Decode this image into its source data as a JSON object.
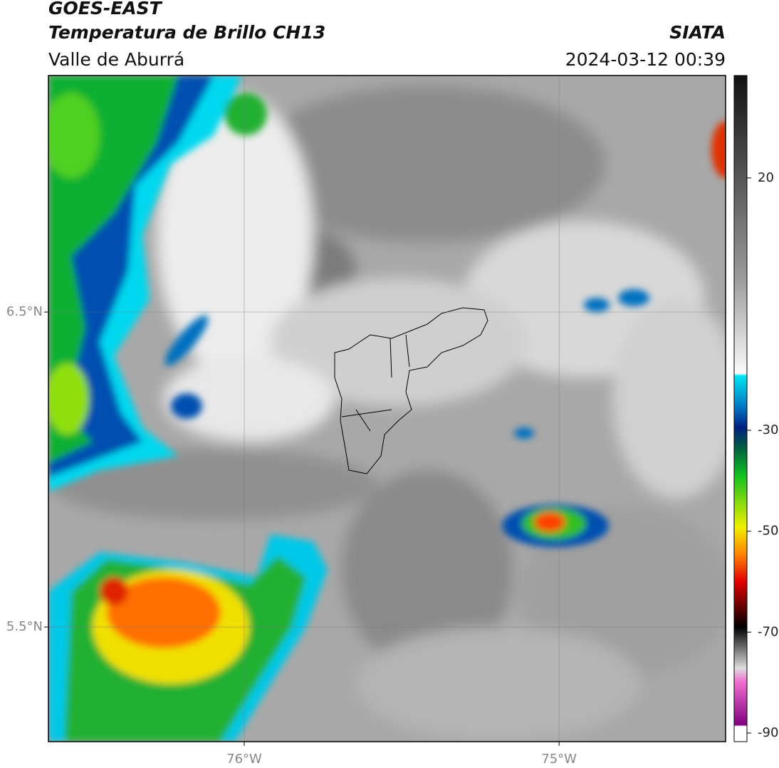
{
  "header": {
    "satellite": "GOES-EAST",
    "product": "Temperatura de Brillo CH13",
    "region": "Valle de Aburrá",
    "agency": "SIATA",
    "datetime": "2024-03-12 00:39"
  },
  "map": {
    "xlim": [
      -76.622,
      -74.471
    ],
    "ylim": [
      5.136,
      7.251
    ],
    "lat_ticks": [
      {
        "value": 6.5,
        "label": "6.5°N"
      },
      {
        "value": 5.5,
        "label": "5.5°N"
      }
    ],
    "lon_ticks": [
      {
        "value": -76,
        "label": "76°W"
      },
      {
        "value": -75,
        "label": "75°W"
      }
    ]
  },
  "colorbar": {
    "lim": [
      -91.7,
      40.3
    ],
    "ticks": [
      20,
      -30,
      -50,
      -70,
      -90
    ]
  }
}
